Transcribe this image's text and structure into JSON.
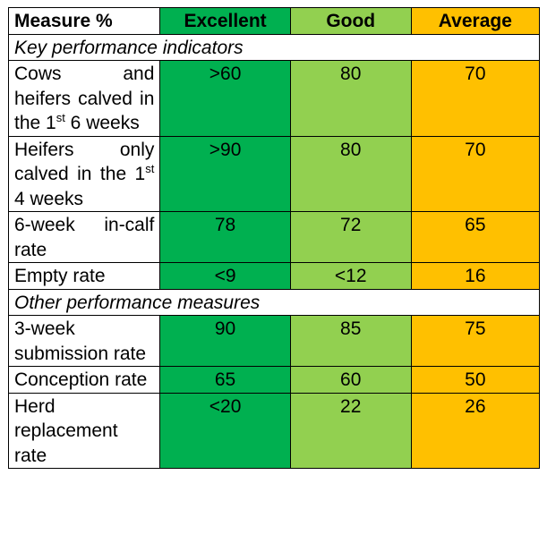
{
  "header": {
    "measure": "Measure %",
    "excellent": "Excellent",
    "good": "Good",
    "average": "Average"
  },
  "colors": {
    "excellent": "#00b050",
    "good": "#92d050",
    "average": "#ffc000"
  },
  "sections": [
    {
      "title": "Key performance indicators",
      "rows": [
        {
          "pre": "Cows and heifers calved in the 1",
          "sup": "st",
          "post": " 6 weeks",
          "excellent": ">60",
          "good": "80",
          "average": "70"
        },
        {
          "pre": "Heifers only calved in the 1",
          "sup": "st",
          "post": " 4 weeks",
          "excellent": ">90",
          "good": "80",
          "average": "70"
        },
        {
          "pre": "6-week in-calf rate",
          "excellent": "78",
          "good": "72",
          "average": "65"
        },
        {
          "pre": "Empty rate",
          "excellent": "<9",
          "good": "<12",
          "average": "16"
        }
      ]
    },
    {
      "title": "Other performance measures",
      "rows": [
        {
          "pre": "3-week submission rate",
          "excellent": "90",
          "good": "85",
          "average": "75"
        },
        {
          "pre": "Conception rate",
          "excellent": "65",
          "good": "60",
          "average": "50"
        },
        {
          "pre": "Herd replacement rate",
          "excellent": "<20",
          "good": "22",
          "average": "26"
        }
      ]
    }
  ]
}
